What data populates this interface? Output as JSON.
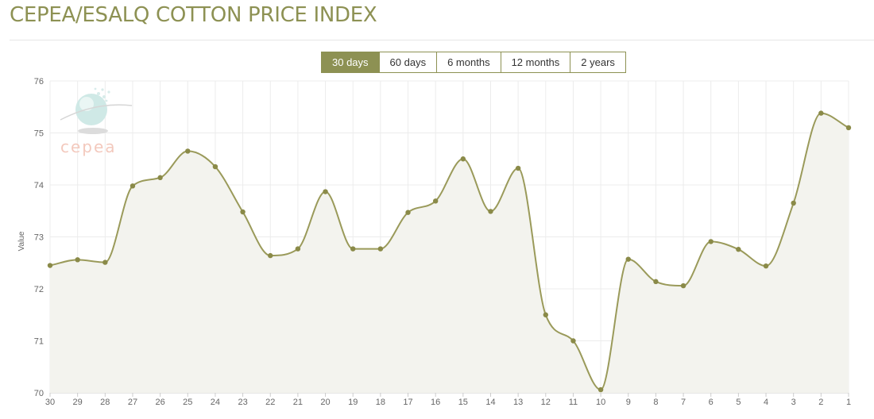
{
  "page": {
    "title": "CEPEA/ESALQ COTTON PRICE INDEX"
  },
  "range_buttons": [
    {
      "label": "30 days",
      "active": true
    },
    {
      "label": "60 days",
      "active": false
    },
    {
      "label": "6 months",
      "active": false
    },
    {
      "label": "12 months",
      "active": false
    },
    {
      "label": "2 years",
      "active": false
    }
  ],
  "logo": {
    "text": "cepea",
    "icon": "globe-logo-icon"
  },
  "colors": {
    "accent": "#8d9153",
    "line": "#9a9a5a",
    "area_fill": "#f3f3ee",
    "grid": "#ececec"
  },
  "chart_data": {
    "type": "area",
    "title": "",
    "xlabel": "",
    "ylabel": "Value",
    "ylim": [
      70,
      76
    ],
    "yticks": [
      70,
      71,
      72,
      73,
      74,
      75,
      76
    ],
    "grid": true,
    "categories": [
      "30",
      "29",
      "28",
      "27",
      "26",
      "25",
      "24",
      "23",
      "22",
      "21",
      "20",
      "19",
      "18",
      "17",
      "16",
      "15",
      "14",
      "13",
      "12",
      "11",
      "10",
      "9",
      "8",
      "7",
      "6",
      "5",
      "4",
      "3",
      "2",
      "1"
    ],
    "series": [
      {
        "values": [
          72.45,
          72.56,
          72.51,
          73.98,
          74.14,
          74.65,
          74.35,
          73.48,
          72.64,
          72.77,
          73.87,
          72.77,
          72.77,
          73.47,
          73.69,
          74.5,
          73.49,
          74.32,
          71.5,
          71.0,
          70.06,
          72.57,
          72.14,
          72.06,
          72.91,
          72.76,
          72.44,
          73.65,
          75.38,
          75.1
        ]
      }
    ]
  }
}
